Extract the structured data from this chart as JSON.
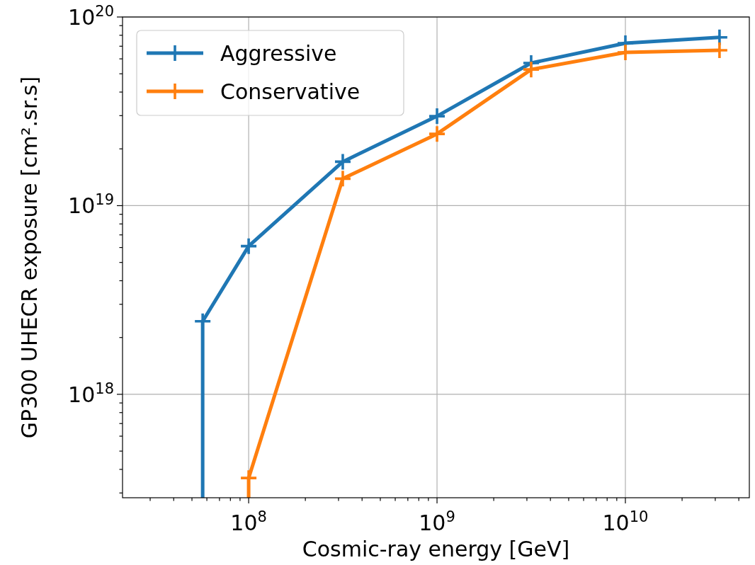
{
  "chart_data": {
    "type": "line",
    "xlabel": "Cosmic-ray energy [GeV]",
    "ylabel": "GP300 UHECR exposure [cm².sr.s]",
    "log": "xy",
    "grid": true,
    "legend": "top left",
    "marker": "cross",
    "line_style": "solid",
    "xlim": [
      21400000.0,
      45500000000.0
    ],
    "ylim": [
      2.83e+17,
      1e+20
    ],
    "xticks": [
      {
        "value": 30000000.0,
        "label": null
      },
      {
        "value": 40000000.0,
        "label": null
      },
      {
        "value": 50000000.0,
        "label": null
      },
      {
        "value": 60000000.0,
        "label": null
      },
      {
        "value": 70000000.0,
        "label": null
      },
      {
        "value": 80000000.0,
        "label": null
      },
      {
        "value": 90000000.0,
        "label": null
      },
      {
        "value": 100000000.0,
        "label": "10$^{8}$"
      },
      {
        "value": 200000000.0,
        "label": null
      },
      {
        "value": 300000000.0,
        "label": null
      },
      {
        "value": 400000000.0,
        "label": null
      },
      {
        "value": 500000000.0,
        "label": null
      },
      {
        "value": 600000000.0,
        "label": null
      },
      {
        "value": 700000000.0,
        "label": null
      },
      {
        "value": 800000000.0,
        "label": null
      },
      {
        "value": 900000000.0,
        "label": null
      },
      {
        "value": 1000000000.0,
        "label": "10$^{9}$"
      },
      {
        "value": 2000000000.0,
        "label": null
      },
      {
        "value": 3000000000.0,
        "label": null
      },
      {
        "value": 4000000000.0,
        "label": null
      },
      {
        "value": 5000000000.0,
        "label": null
      },
      {
        "value": 6000000000.0,
        "label": null
      },
      {
        "value": 7000000000.0,
        "label": null
      },
      {
        "value": 8000000000.0,
        "label": null
      },
      {
        "value": 9000000000.0,
        "label": null
      },
      {
        "value": 10000000000.0,
        "label": "10$^{10}$"
      },
      {
        "value": 20000000000.0,
        "label": null
      },
      {
        "value": 30000000000.0,
        "label": null
      },
      {
        "value": 40000000000.0,
        "label": null
      }
    ],
    "yticks": [
      {
        "value": 3e+17,
        "label": null
      },
      {
        "value": 4e+17,
        "label": null
      },
      {
        "value": 5e+17,
        "label": null
      },
      {
        "value": 6e+17,
        "label": null
      },
      {
        "value": 7e+17,
        "label": null
      },
      {
        "value": 8e+17,
        "label": null
      },
      {
        "value": 9e+17,
        "label": null
      },
      {
        "value": 1e+18,
        "label": "10$^{18}$"
      },
      {
        "value": 2e+18,
        "label": null
      },
      {
        "value": 3e+18,
        "label": null
      },
      {
        "value": 4e+18,
        "label": null
      },
      {
        "value": 5e+18,
        "label": null
      },
      {
        "value": 6e+18,
        "label": null
      },
      {
        "value": 7e+18,
        "label": null
      },
      {
        "value": 8e+18,
        "label": null
      },
      {
        "value": 9e+18,
        "label": null
      },
      {
        "value": 1e+19,
        "label": "10$^{19}$"
      },
      {
        "value": 2e+19,
        "label": null
      },
      {
        "value": 3e+19,
        "label": null
      },
      {
        "value": 4e+19,
        "label": null
      },
      {
        "value": 5e+19,
        "label": null
      },
      {
        "value": 6e+19,
        "label": null
      },
      {
        "value": 7e+19,
        "label": null
      },
      {
        "value": 8e+19,
        "label": null
      },
      {
        "value": 9e+19,
        "label": null
      },
      {
        "value": 1e+20,
        "label": "10$^{20}$"
      }
    ],
    "series": [
      {
        "name": "Aggressive",
        "color": "#1f77b4",
        "x": [
          57000000.0,
          57000000.0,
          100000000.0,
          316000000.0,
          1000000000.0,
          3160000000.0,
          10000000000.0,
          31600000000.0
        ],
        "values": [
          2.83e+17,
          2.44e+18,
          6.1e+18,
          1.71e+19,
          2.98e+19,
          5.7e+19,
          7.26e+19,
          7.8e+19
        ]
      },
      {
        "name": "Conservative",
        "color": "#ff7f0e",
        "x": [
          100000000.0,
          100000000.0,
          316000000.0,
          1000000000.0,
          3160000000.0,
          10000000000.0,
          31600000000.0
        ],
        "values": [
          2.83e+17,
          3.6e+17,
          1.39e+19,
          2.4e+19,
          5.27e+19,
          6.49e+19,
          6.66e+19
        ]
      }
    ]
  }
}
